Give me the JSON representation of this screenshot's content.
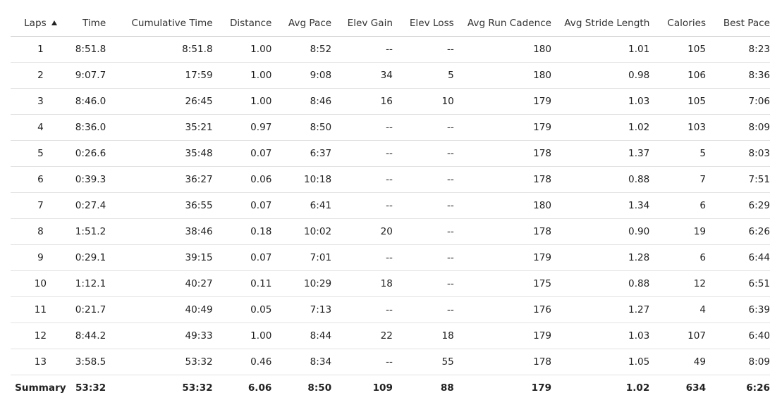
{
  "table": {
    "columns": [
      {
        "label": "Laps",
        "sorted": "asc",
        "sort_icon": "sort-ascending-icon"
      },
      {
        "label": "Time"
      },
      {
        "label": "Cumulative Time"
      },
      {
        "label": "Distance"
      },
      {
        "label": "Avg Pace"
      },
      {
        "label": "Elev Gain"
      },
      {
        "label": "Elev Loss"
      },
      {
        "label": "Avg Run Cadence"
      },
      {
        "label": "Avg Stride Length"
      },
      {
        "label": "Calories"
      },
      {
        "label": "Best Pace"
      }
    ],
    "rows": [
      [
        "1",
        "8:51.8",
        "8:51.8",
        "1.00",
        "8:52",
        "--",
        "--",
        "180",
        "1.01",
        "105",
        "8:23"
      ],
      [
        "2",
        "9:07.7",
        "17:59",
        "1.00",
        "9:08",
        "34",
        "5",
        "180",
        "0.98",
        "106",
        "8:36"
      ],
      [
        "3",
        "8:46.0",
        "26:45",
        "1.00",
        "8:46",
        "16",
        "10",
        "179",
        "1.03",
        "105",
        "7:06"
      ],
      [
        "4",
        "8:36.0",
        "35:21",
        "0.97",
        "8:50",
        "--",
        "--",
        "179",
        "1.02",
        "103",
        "8:09"
      ],
      [
        "5",
        "0:26.6",
        "35:48",
        "0.07",
        "6:37",
        "--",
        "--",
        "178",
        "1.37",
        "5",
        "8:03"
      ],
      [
        "6",
        "0:39.3",
        "36:27",
        "0.06",
        "10:18",
        "--",
        "--",
        "178",
        "0.88",
        "7",
        "7:51"
      ],
      [
        "7",
        "0:27.4",
        "36:55",
        "0.07",
        "6:41",
        "--",
        "--",
        "180",
        "1.34",
        "6",
        "6:29"
      ],
      [
        "8",
        "1:51.2",
        "38:46",
        "0.18",
        "10:02",
        "20",
        "--",
        "178",
        "0.90",
        "19",
        "6:26"
      ],
      [
        "9",
        "0:29.1",
        "39:15",
        "0.07",
        "7:01",
        "--",
        "--",
        "179",
        "1.28",
        "6",
        "6:44"
      ],
      [
        "10",
        "1:12.1",
        "40:27",
        "0.11",
        "10:29",
        "18",
        "--",
        "175",
        "0.88",
        "12",
        "6:51"
      ],
      [
        "11",
        "0:21.7",
        "40:49",
        "0.05",
        "7:13",
        "--",
        "--",
        "176",
        "1.27",
        "4",
        "6:39"
      ],
      [
        "12",
        "8:44.2",
        "49:33",
        "1.00",
        "8:44",
        "22",
        "18",
        "179",
        "1.03",
        "107",
        "6:40"
      ],
      [
        "13",
        "3:58.5",
        "53:32",
        "0.46",
        "8:34",
        "--",
        "55",
        "178",
        "1.05",
        "49",
        "8:09"
      ]
    ],
    "summary": [
      "Summary",
      "53:32",
      "53:32",
      "6.06",
      "8:50",
      "109",
      "88",
      "179",
      "1.02",
      "634",
      "6:26"
    ]
  }
}
